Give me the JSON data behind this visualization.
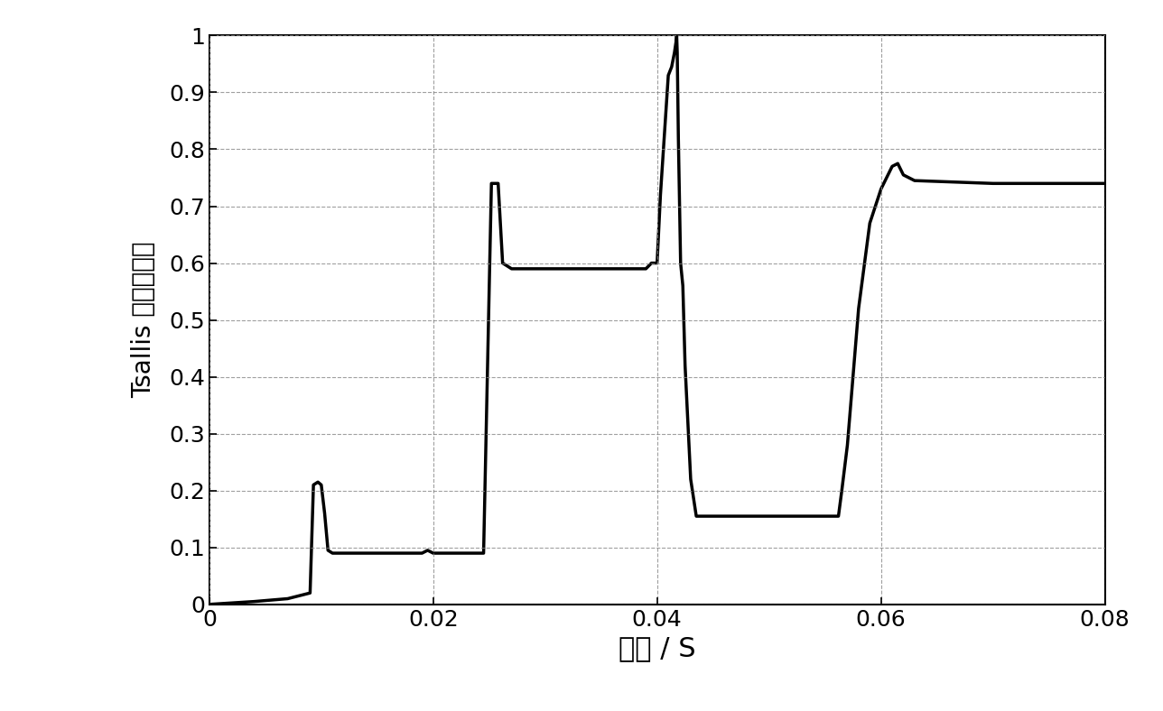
{
  "xlabel": "时间 / S",
  "ylabel": "Tsallis 小波奇异熵",
  "xlim": [
    0,
    0.08
  ],
  "ylim": [
    0,
    1.0
  ],
  "xticks": [
    0,
    0.02,
    0.04,
    0.06,
    0.08
  ],
  "yticks": [
    0,
    0.1,
    0.2,
    0.3,
    0.4,
    0.5,
    0.6,
    0.7,
    0.8,
    0.9,
    1
  ],
  "line_color": "#000000",
  "line_width": 2.5,
  "bg_color": "#ffffff",
  "grid_color": "#888888",
  "xlabel_fontsize": 22,
  "ylabel_fontsize": 20,
  "tick_fontsize": 18,
  "signal_points": [
    [
      0.0,
      0.0
    ],
    [
      0.004,
      0.005
    ],
    [
      0.007,
      0.01
    ],
    [
      0.009,
      0.02
    ],
    [
      0.0093,
      0.21
    ],
    [
      0.0097,
      0.215
    ],
    [
      0.01,
      0.21
    ],
    [
      0.0103,
      0.16
    ],
    [
      0.0106,
      0.095
    ],
    [
      0.011,
      0.09
    ],
    [
      0.019,
      0.09
    ],
    [
      0.0195,
      0.095
    ],
    [
      0.02,
      0.09
    ],
    [
      0.0245,
      0.09
    ],
    [
      0.0252,
      0.74
    ],
    [
      0.0258,
      0.74
    ],
    [
      0.0262,
      0.6
    ],
    [
      0.027,
      0.59
    ],
    [
      0.039,
      0.59
    ],
    [
      0.0395,
      0.6
    ],
    [
      0.04,
      0.6
    ],
    [
      0.0403,
      0.72
    ],
    [
      0.0407,
      0.84
    ],
    [
      0.041,
      0.93
    ],
    [
      0.0413,
      0.945
    ],
    [
      0.04155,
      0.97
    ],
    [
      0.0417,
      0.99
    ],
    [
      0.04175,
      1.0
    ],
    [
      0.0418,
      0.97
    ],
    [
      0.0419,
      0.82
    ],
    [
      0.0421,
      0.6
    ],
    [
      0.0423,
      0.56
    ],
    [
      0.0425,
      0.42
    ],
    [
      0.043,
      0.22
    ],
    [
      0.0435,
      0.155
    ],
    [
      0.045,
      0.155
    ],
    [
      0.05,
      0.155
    ],
    [
      0.0535,
      0.155
    ],
    [
      0.054,
      0.155
    ],
    [
      0.055,
      0.155
    ],
    [
      0.0558,
      0.155
    ],
    [
      0.0562,
      0.155
    ],
    [
      0.0565,
      0.2
    ],
    [
      0.057,
      0.28
    ],
    [
      0.058,
      0.52
    ],
    [
      0.059,
      0.67
    ],
    [
      0.06,
      0.73
    ],
    [
      0.061,
      0.77
    ],
    [
      0.0615,
      0.775
    ],
    [
      0.062,
      0.755
    ],
    [
      0.063,
      0.745
    ],
    [
      0.07,
      0.74
    ],
    [
      0.075,
      0.74
    ],
    [
      0.08,
      0.74
    ]
  ]
}
